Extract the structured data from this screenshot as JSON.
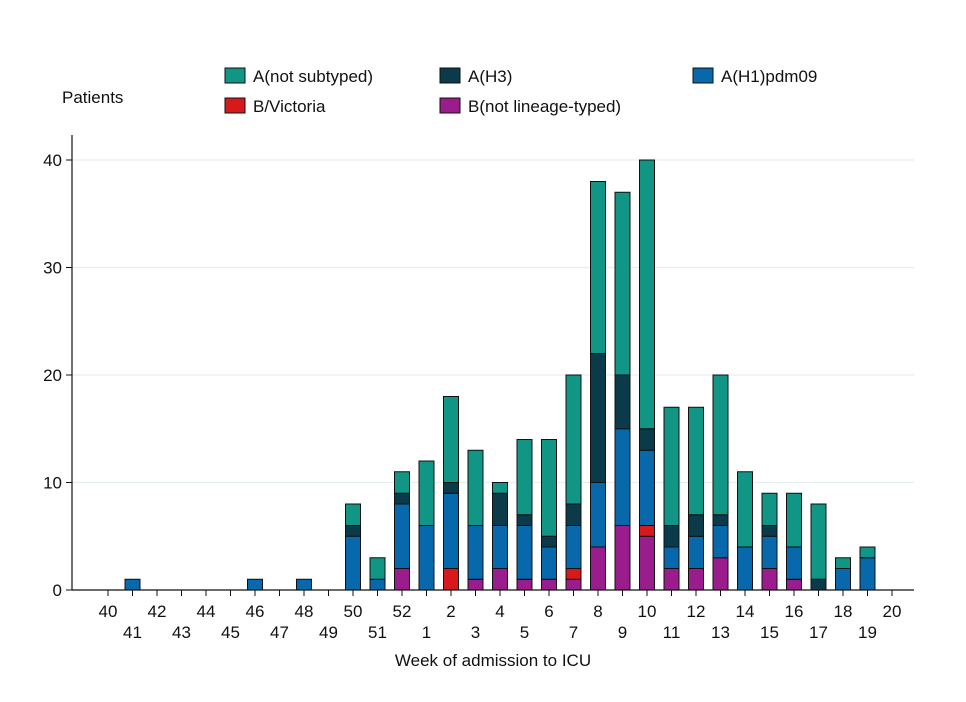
{
  "chart_data": {
    "type": "bar",
    "stacked": true,
    "ylabel": "Patients",
    "xlabel": "Week of admission to ICU",
    "ylim": [
      0,
      42
    ],
    "yticks": [
      0,
      10,
      20,
      30,
      40
    ],
    "grid": "horizontal",
    "legend_position": "top",
    "categories": [
      "40",
      "41",
      "42",
      "43",
      "44",
      "45",
      "46",
      "47",
      "48",
      "49",
      "50",
      "51",
      "52",
      "1",
      "2",
      "3",
      "4",
      "5",
      "6",
      "7",
      "8",
      "9",
      "10",
      "11",
      "12",
      "13",
      "14",
      "15",
      "16",
      "17",
      "18",
      "19",
      "20"
    ],
    "series": [
      {
        "name": "B(not lineage-typed)",
        "color": "#9b1c8c",
        "values": [
          0,
          0,
          0,
          0,
          0,
          0,
          0,
          0,
          0,
          0,
          0,
          0,
          2,
          0,
          0,
          1,
          2,
          1,
          1,
          1,
          4,
          6,
          5,
          2,
          2,
          3,
          0,
          2,
          1,
          0,
          0,
          0,
          0
        ]
      },
      {
        "name": "B/Victoria",
        "color": "#d7191c",
        "values": [
          0,
          0,
          0,
          0,
          0,
          0,
          0,
          0,
          0,
          0,
          0,
          0,
          0,
          0,
          2,
          0,
          0,
          0,
          0,
          1,
          0,
          0,
          1,
          0,
          0,
          0,
          0,
          0,
          0,
          0,
          0,
          0,
          0
        ]
      },
      {
        "name": "A(H1)pdm09",
        "color": "#0868ac",
        "values": [
          0,
          1,
          0,
          0,
          0,
          0,
          1,
          0,
          1,
          0,
          5,
          1,
          6,
          6,
          7,
          5,
          4,
          5,
          3,
          4,
          6,
          9,
          7,
          2,
          3,
          3,
          4,
          3,
          3,
          0,
          2,
          3,
          0
        ]
      },
      {
        "name": "A(H3)",
        "color": "#0b3a4a",
        "values": [
          0,
          0,
          0,
          0,
          0,
          0,
          0,
          0,
          0,
          0,
          1,
          0,
          1,
          0,
          1,
          0,
          3,
          1,
          1,
          2,
          12,
          5,
          2,
          2,
          2,
          1,
          0,
          1,
          0,
          1,
          0,
          0,
          0
        ]
      },
      {
        "name": "A(not subtyped)",
        "color": "#119585",
        "values": [
          0,
          0,
          0,
          0,
          0,
          0,
          0,
          0,
          0,
          0,
          2,
          2,
          2,
          6,
          8,
          7,
          1,
          7,
          9,
          12,
          16,
          17,
          25,
          11,
          10,
          13,
          7,
          3,
          5,
          7,
          1,
          1,
          0
        ]
      }
    ],
    "legend_order": [
      "A(not subtyped)",
      "A(H3)",
      "A(H1)pdm09",
      "B/Victoria",
      "B(not lineage-typed)"
    ]
  }
}
